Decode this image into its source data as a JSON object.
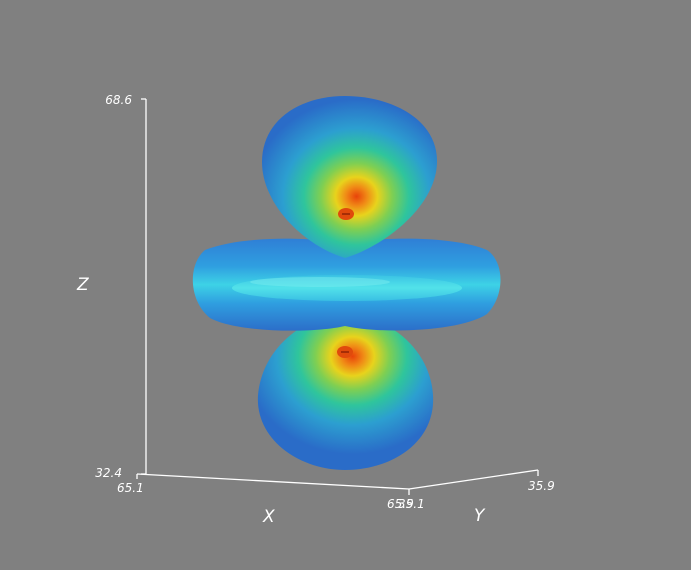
{
  "axes": {
    "x": {
      "title": "X",
      "min_label": "65.1",
      "max_label": "65.9"
    },
    "y": {
      "title": "Y",
      "min_label": "35.1",
      "max_label": "35.9"
    },
    "z": {
      "title": "Z",
      "min_label": "32.4",
      "max_label": "68.6"
    }
  },
  "colors": {
    "background": "#808080",
    "axis": "#ffffff",
    "outer_shell": "#2f78d2",
    "inner_cyan": "#39d9e6",
    "mid_green": "#4ec79b",
    "yellow": "#e8d31c",
    "core_orange": "#e85a10"
  }
}
